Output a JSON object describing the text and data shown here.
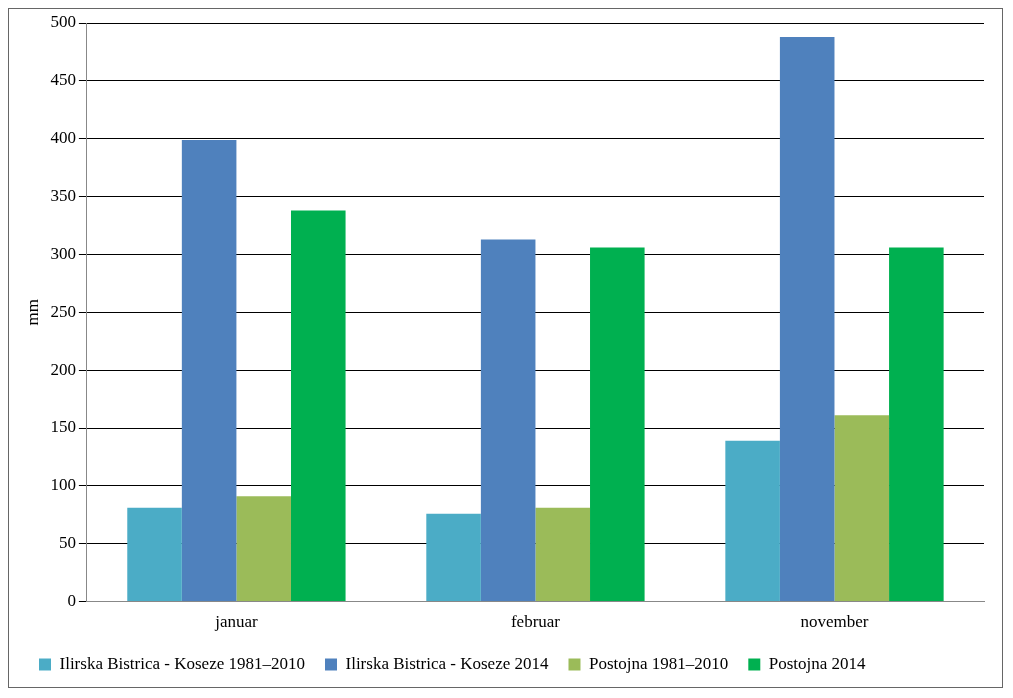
{
  "chart_data": {
    "type": "bar",
    "ylabel": "mm",
    "categories": [
      "januar",
      "februar",
      "november"
    ],
    "series": [
      {
        "name": "Ilirska Bistrica - Koseze 1981–2010",
        "color": "#4bacc6",
        "values": [
          81,
          76,
          139
        ]
      },
      {
        "name": "Ilirska Bistrica - Koseze 2014",
        "color": "#4f81bd",
        "values": [
          399,
          313,
          488
        ]
      },
      {
        "name": "Postojna 1981–2010",
        "color": "#9bbb59",
        "values": [
          91,
          81,
          161
        ]
      },
      {
        "name": "Postojna 2014",
        "color": "#00b050",
        "values": [
          338,
          306,
          306
        ]
      }
    ],
    "ylim": [
      0,
      500
    ],
    "yticks": [
      0,
      50,
      100,
      150,
      200,
      250,
      300,
      350,
      400,
      450,
      500
    ],
    "grid": "y",
    "legend": "bottom"
  }
}
